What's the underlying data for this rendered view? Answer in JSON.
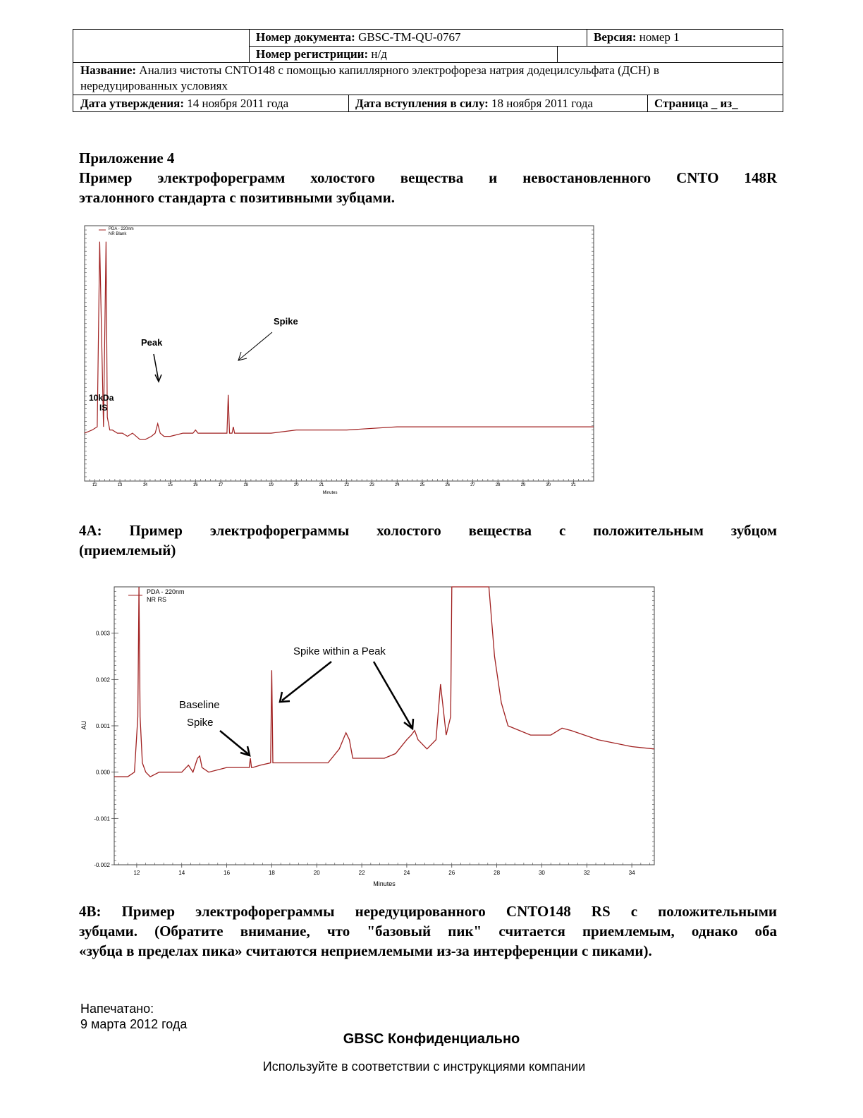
{
  "header": {
    "doc_number_label": "Номер документа:",
    "doc_number_value": "GBSC-TM-QU-0767",
    "version_label": "Версия:",
    "version_value": "номер 1",
    "registration_label": "Номер регистриции:",
    "registration_value": "н/д",
    "title_label": "Название:",
    "title_value_line1": "Анализ чистоты CNTO148 с помощью капиллярного электрофореза натрия додецилсульфата (ДСН) в",
    "title_value_line2": "нередуцированных условиях",
    "approval_label": "Дата утверждения:",
    "approval_value": "14 ноября 2011 года",
    "effective_label": "Дата вступления в силу:",
    "effective_value": "18 ноября 2011 года",
    "page_label": "Страница _ из_"
  },
  "appendix": {
    "title": "Приложение 4",
    "subtitle_line1": "Пример электрофореграмм холостого вещества и невостановленного CNTO 148R",
    "subtitle_line2": "эталонного стандарта с позитивными зубцами."
  },
  "caption_4a": {
    "line1": "4A: Пример электрофореграммы холостого вещества с положительным зубцом",
    "line2": "(приемлемый)"
  },
  "caption_4b": {
    "line1": "4B: Пример электрофореграммы нередуцированного CNTO148 RS с положительными",
    "line2": "зубцами. (Обратите внимание, что \"базовый пик\" считается приемлемым, однако оба",
    "line3": "«зубца в пределах пика» считаются неприемлемыми из-за интерференции с пиками)."
  },
  "footer": {
    "printed_label": "Напечатано:",
    "printed_date": "9 марта 2012 года",
    "confidential": "GBSC Конфиденциально",
    "usage": "Используйте в соответствии с инструкциями компании"
  },
  "chart_data": [
    {
      "type": "line",
      "legend": [
        "PDA - 220nm",
        "NR Blank"
      ],
      "xlabel": "Minutes",
      "ylabel": "",
      "x_ticks": [
        12,
        13,
        14,
        15,
        16,
        17,
        18,
        19,
        20,
        21,
        22,
        23,
        24,
        25,
        26,
        27,
        28,
        29,
        30,
        31
      ],
      "x_tick_labels": [
        "12",
        "13",
        "14",
        "15",
        "16",
        "17",
        "18",
        "19",
        "20",
        "21",
        "22",
        "23",
        "24",
        "25",
        "26",
        "27",
        "28",
        "29",
        "30",
        "31"
      ],
      "xlim": [
        11.6,
        31.8
      ],
      "ylim": [
        -0.0015,
        0.0065
      ],
      "annotations": [
        "Peak",
        "Spike",
        "10kDa",
        "IS"
      ],
      "line_color": "#a02020",
      "series": [
        {
          "x": [
            11.6,
            11.9,
            12.1,
            12.2,
            12.25,
            12.35,
            12.45,
            12.5,
            12.55,
            12.6,
            12.7,
            12.9,
            13.1,
            13.3,
            13.5,
            13.8,
            14.0,
            14.25,
            14.4,
            14.5,
            14.6,
            14.75,
            15.0,
            15.5,
            15.9,
            16.0,
            16.1,
            16.5,
            17.0,
            17.25,
            17.3,
            17.35,
            17.45,
            17.5,
            17.55,
            17.65,
            18.0,
            19.0,
            20.0,
            22.0,
            24.0,
            26.0,
            28.0,
            30.0,
            31.8
          ],
          "y": [
            0.0,
            0.0001,
            0.0002,
            0.006,
            0.004,
            0.0002,
            0.006,
            0.0005,
            0.0003,
            0.0001,
            0.0001,
            0.0,
            0.0,
            -0.0001,
            0.0,
            -0.0002,
            -0.0002,
            -0.0001,
            0.0,
            0.0003,
            0.0,
            -0.0001,
            -0.0001,
            0.0,
            0.0,
            0.0001,
            0.0,
            0.0,
            0.0,
            0.0,
            0.0012,
            0.0,
            0.0,
            0.0002,
            0.0,
            0.0,
            0.0,
            0.0,
            0.0001,
            0.0001,
            0.0002,
            0.0002,
            0.0002,
            0.0002,
            0.0002
          ]
        }
      ]
    },
    {
      "type": "line",
      "legend": [
        "PDA - 220nm",
        "NR RS"
      ],
      "xlabel": "Minutes",
      "ylabel": "AU",
      "x_ticks": [
        12,
        14,
        16,
        18,
        20,
        22,
        24,
        26,
        28,
        30,
        32,
        34
      ],
      "x_tick_labels": [
        "12",
        "14",
        "16",
        "18",
        "20",
        "22",
        "24",
        "26",
        "28",
        "30",
        "32",
        "34"
      ],
      "y_ticks": [
        -0.002,
        -0.001,
        0.0,
        0.001,
        0.002,
        0.003
      ],
      "y_tick_labels": [
        "-0.002",
        "-0.001",
        "0.000",
        "0.001",
        "0.002",
        "0.003"
      ],
      "xlim": [
        11.0,
        35.0
      ],
      "ylim": [
        -0.002,
        0.004
      ],
      "annotations": [
        "Spike within a Peak",
        "Baseline",
        "Spike"
      ],
      "line_color": "#a02020",
      "series": [
        {
          "x": [
            11.0,
            11.6,
            11.9,
            12.05,
            12.1,
            12.15,
            12.25,
            12.4,
            12.6,
            13.0,
            13.5,
            14.0,
            14.2,
            14.3,
            14.5,
            14.7,
            14.8,
            14.9,
            15.2,
            16.0,
            17.0,
            17.05,
            17.1,
            17.15,
            17.5,
            17.95,
            18.0,
            18.05,
            18.1,
            18.2,
            19.0,
            20.5,
            21.0,
            21.3,
            21.45,
            21.6,
            22.0,
            23.0,
            23.5,
            24.0,
            24.2,
            24.35,
            24.5,
            24.7,
            24.9,
            25.3,
            25.5,
            25.75,
            25.95,
            26.0,
            26.15,
            26.2,
            27.6,
            27.65,
            27.9,
            28.2,
            28.5,
            29.5,
            30.4,
            30.9,
            31.3,
            32.5,
            34.0,
            35.0
          ],
          "y": [
            -0.0001,
            -0.0001,
            0.0,
            0.0012,
            0.004,
            0.0012,
            0.0002,
            0.0,
            -0.0001,
            0.0,
            0.0,
            0.0,
            0.0001,
            0.00015,
            0.0,
            0.0003,
            0.00035,
            0.0001,
            0.0,
            0.0001,
            0.0001,
            0.0003,
            0.0001,
            0.0001,
            0.00015,
            0.0002,
            0.0022,
            0.0002,
            0.0002,
            0.0002,
            0.0002,
            0.0002,
            0.0005,
            0.00085,
            0.0007,
            0.0003,
            0.0003,
            0.0003,
            0.0004,
            0.0007,
            0.0008,
            0.0009,
            0.0007,
            0.0006,
            0.0005,
            0.0007,
            0.0019,
            0.0008,
            0.0012,
            0.004,
            0.004,
            0.004,
            0.004,
            0.004,
            0.0025,
            0.0015,
            0.001,
            0.0008,
            0.0008,
            0.00095,
            0.0009,
            0.0007,
            0.00055,
            0.0005
          ]
        }
      ]
    }
  ]
}
